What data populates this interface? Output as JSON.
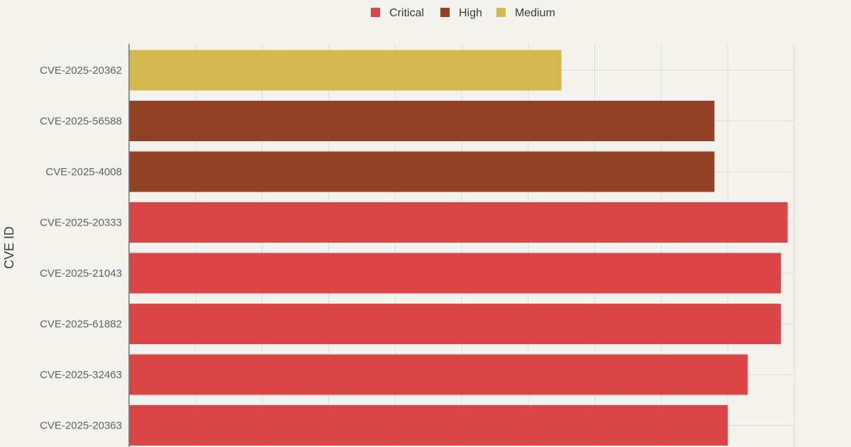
{
  "chart_data": {
    "type": "bar",
    "orientation": "horizontal",
    "title": "",
    "ylabel": "CVE ID",
    "xlabel": "",
    "xlim": [
      0,
      10
    ],
    "grid": true,
    "legend": {
      "placement": "top-center",
      "entries": [
        {
          "name": "Critical",
          "color": "#dc4545"
        },
        {
          "name": "High",
          "color": "#934124"
        },
        {
          "name": "Medium",
          "color": "#d3b84f"
        }
      ]
    },
    "categories": [
      "CVE-2025-20362",
      "CVE-2025-56588",
      "CVE-2025-4008",
      "CVE-2025-20333",
      "CVE-2025-21043",
      "CVE-2025-61882",
      "CVE-2025-32463",
      "CVE-2025-20363"
    ],
    "values": [
      6.5,
      8.8,
      8.8,
      9.9,
      9.8,
      9.8,
      9.3,
      9.0
    ],
    "severity": [
      "Medium",
      "High",
      "High",
      "Critical",
      "Critical",
      "Critical",
      "Critical",
      "Critical"
    ]
  }
}
